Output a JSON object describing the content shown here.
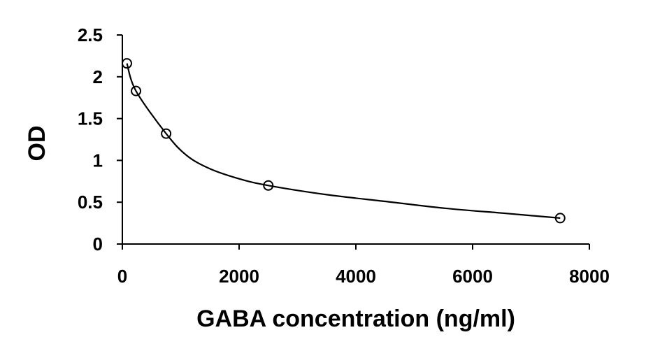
{
  "chart_data": {
    "type": "scatter",
    "title": "",
    "xlabel": "GABA concentration (ng/ml)",
    "ylabel": "OD",
    "xlim": [
      0,
      8000
    ],
    "ylim": [
      0,
      2.5
    ],
    "x_ticks": [
      0,
      2000,
      4000,
      6000,
      8000
    ],
    "y_ticks": [
      0,
      0.5,
      1,
      1.5,
      2,
      2.5
    ],
    "x_tick_labels": [
      "0",
      "2000",
      "4000",
      "6000",
      "8000"
    ],
    "y_tick_labels": [
      "0",
      "0.5",
      "1",
      "1.5",
      "2",
      "2.5"
    ],
    "grid": false,
    "legend": "none",
    "series": [
      {
        "marker": "open-circle",
        "x": [
          78,
          234,
          750,
          2500,
          7500
        ],
        "y": [
          2.16,
          1.83,
          1.32,
          0.7,
          0.31
        ]
      }
    ],
    "fit_curve": {
      "style": "smooth-line",
      "x": [
        78,
        234,
        750,
        1100,
        1500,
        2000,
        2500,
        3500,
        4500,
        5500,
        6500,
        7500
      ],
      "y": [
        2.16,
        1.83,
        1.32,
        1.06,
        0.9,
        0.78,
        0.7,
        0.59,
        0.51,
        0.43,
        0.37,
        0.31
      ]
    }
  }
}
